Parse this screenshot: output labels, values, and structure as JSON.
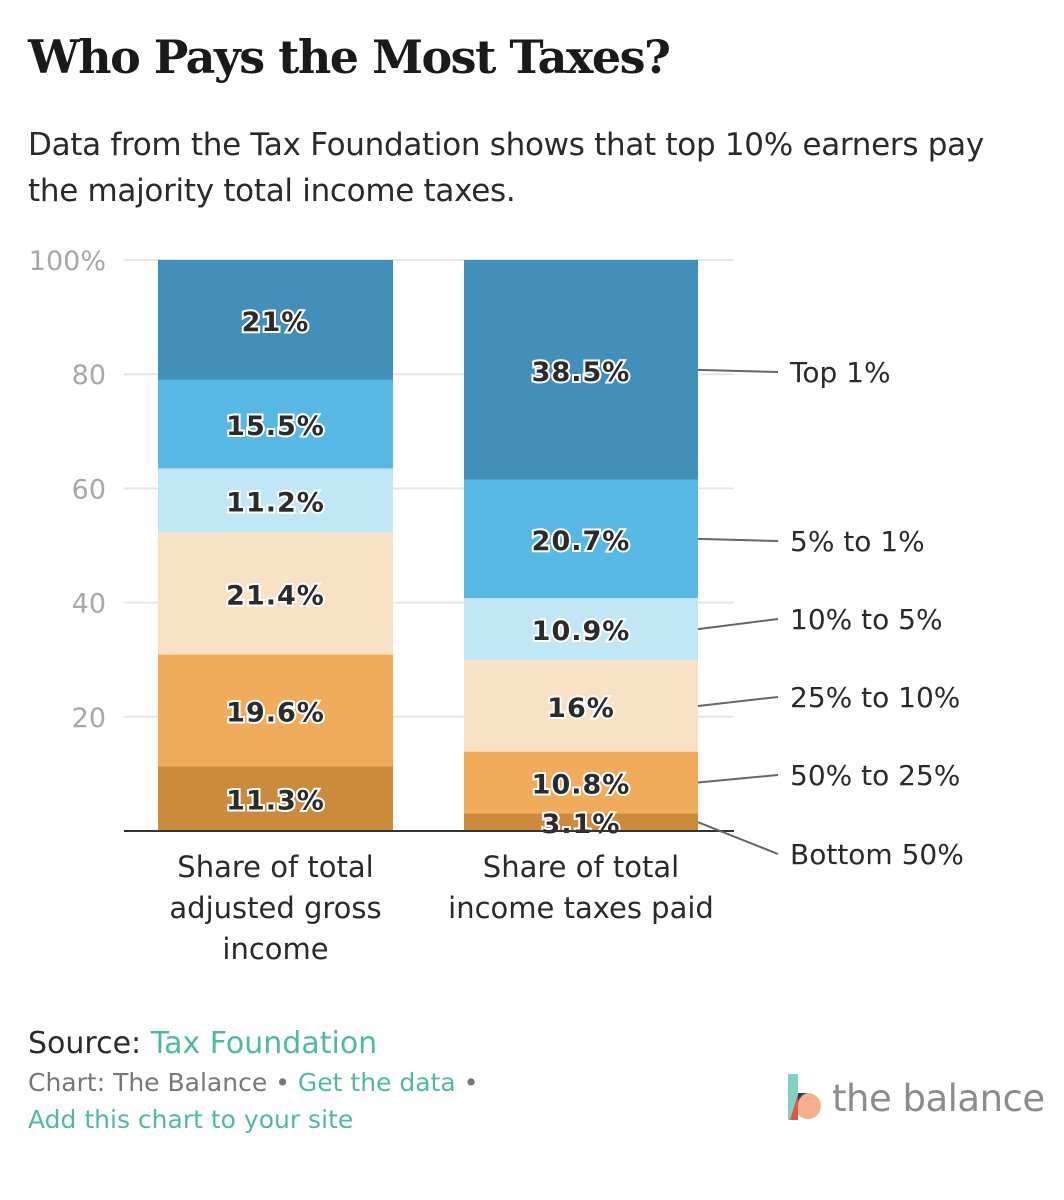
{
  "title": "Who Pays the Most Taxes?",
  "subtitle": "Data from the Tax Foundation shows that top 10% earners pay the majority total income taxes.",
  "source_label": "Source:",
  "source_link": "Tax Foundation",
  "credit_text": "Chart: The Balance",
  "get_data_link": "Get the data",
  "add_chart_link": "Add this chart to your site",
  "bullet": "•",
  "logo_text": "the balance",
  "chart_data": {
    "type": "bar",
    "stacked": true,
    "ylim": [
      0,
      100
    ],
    "yticks": [
      0,
      20,
      40,
      60,
      80,
      100
    ],
    "ytick_labels": [
      "",
      "20",
      "40",
      "60",
      "80",
      "100%"
    ],
    "grid": true,
    "categories": [
      "Share of total adjusted gross income",
      "Share of total income taxes paid"
    ],
    "category_label_lines": [
      [
        "Share of total",
        "adjusted gross",
        "income"
      ],
      [
        "Share of total",
        "income taxes paid"
      ]
    ],
    "series": [
      {
        "name": "Bottom 50%",
        "color": "#cc8b3c",
        "values": [
          11.3,
          3.1
        ],
        "labels": [
          "11.3%",
          "3.1%"
        ]
      },
      {
        "name": "50% to 25%",
        "color": "#f0ab5b",
        "values": [
          19.6,
          10.8
        ],
        "labels": [
          "19.6%",
          "10.8%"
        ]
      },
      {
        "name": "25% to 10%",
        "color": "#f8e1c4",
        "values": [
          21.4,
          16
        ],
        "labels": [
          "21.4%",
          "16%"
        ]
      },
      {
        "name": "10% to 5%",
        "color": "#c1e7f6",
        "values": [
          11.2,
          10.9
        ],
        "labels": [
          "11.2%",
          "10.9%"
        ]
      },
      {
        "name": "5% to 1%",
        "color": "#57b9e3",
        "values": [
          15.5,
          20.7
        ],
        "labels": [
          "15.5%",
          "20.7%"
        ]
      },
      {
        "name": "Top 1%",
        "color": "#4290b9",
        "values": [
          21,
          38.5
        ],
        "labels": [
          "21%",
          "38.5%"
        ]
      }
    ],
    "legend_placement": "right, labels attached to second bar"
  }
}
